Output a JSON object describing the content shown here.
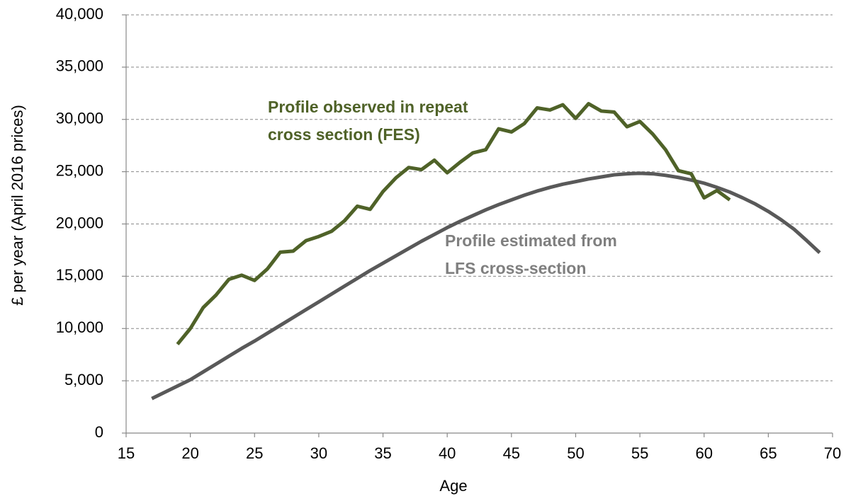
{
  "chart_data": {
    "type": "line",
    "xlabel": "Age",
    "ylabel": "£ per year (April 2016 prices)",
    "xlim": [
      15,
      70
    ],
    "xticks": [
      15,
      20,
      25,
      30,
      35,
      40,
      45,
      50,
      55,
      60,
      65,
      70
    ],
    "ylim": [
      0,
      40000
    ],
    "yticks": [
      0,
      {
        "value": 5000,
        "label": "5,000"
      },
      {
        "value": 10000,
        "label": "10,000"
      },
      {
        "value": 15000,
        "label": "15,000"
      },
      {
        "value": 20000,
        "label": "20,000"
      },
      {
        "value": 25000,
        "label": "25,000"
      },
      {
        "value": 30000,
        "label": "30,000"
      },
      {
        "value": 35000,
        "label": "35,000"
      },
      {
        "value": 40000,
        "label": "40,000"
      }
    ],
    "grid": true,
    "series": [
      {
        "color": "#4f6228",
        "x": [
          19,
          20,
          21,
          22,
          23,
          24,
          25,
          26,
          27,
          28,
          29,
          30,
          31,
          32,
          33,
          34,
          35,
          36,
          37,
          38,
          39,
          40,
          41,
          42,
          43,
          44,
          45,
          46,
          47,
          48,
          49,
          50,
          51,
          52,
          53,
          54,
          55,
          56,
          57,
          58,
          59,
          60,
          61,
          62
        ],
        "values": [
          8500,
          10000,
          12000,
          13200,
          14700,
          15100,
          14600,
          15700,
          17300,
          17400,
          18400,
          18800,
          19300,
          20300,
          21700,
          21400,
          23100,
          24400,
          25400,
          25200,
          26100,
          24900,
          25900,
          26800,
          27100,
          29100,
          28800,
          29600,
          31100,
          30900,
          31400,
          30100,
          31500,
          30800,
          30700,
          29300,
          29800,
          28600,
          27100,
          25100,
          24800,
          22500,
          23200,
          22300
        ]
      },
      {
        "color": "#595959",
        "x": [
          17,
          18,
          19,
          20,
          21,
          22,
          23,
          24,
          25,
          26,
          27,
          28,
          29,
          30,
          31,
          32,
          33,
          34,
          35,
          36,
          37,
          38,
          39,
          40,
          41,
          42,
          43,
          44,
          45,
          46,
          47,
          48,
          49,
          50,
          51,
          52,
          53,
          54,
          55,
          56,
          57,
          58,
          59,
          60,
          61,
          62,
          63,
          64,
          65,
          66,
          67,
          68,
          69
        ],
        "values": [
          3300,
          3900,
          4500,
          5100,
          5850,
          6600,
          7350,
          8100,
          8800,
          9550,
          10300,
          11050,
          11800,
          12550,
          13300,
          14050,
          14800,
          15550,
          16250,
          16950,
          17650,
          18350,
          19000,
          19650,
          20250,
          20800,
          21350,
          21850,
          22300,
          22750,
          23150,
          23500,
          23800,
          24050,
          24300,
          24500,
          24700,
          24800,
          24850,
          24800,
          24650,
          24450,
          24200,
          23900,
          23500,
          23050,
          22500,
          21900,
          21200,
          20400,
          19500,
          18400,
          17250
        ]
      }
    ],
    "annotations": [
      {
        "lines": [
          "Profile observed in repeat",
          "cross section (FES)"
        ],
        "color": "#4f6228"
      },
      {
        "lines": [
          "Profile estimated from",
          "LFS cross-section"
        ],
        "color": "#7f7f7f"
      }
    ]
  }
}
